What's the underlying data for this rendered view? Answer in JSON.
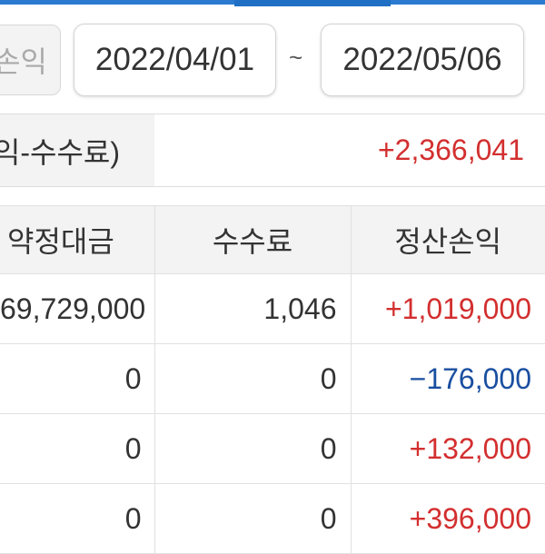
{
  "colors": {
    "accent": "#2a7bd0",
    "positive": "#d32f2f",
    "negative": "#1a4fa0"
  },
  "filter": {
    "label": "손익"
  },
  "date_range": {
    "start": "2022/04/01",
    "separator": "~",
    "end": "2022/05/06"
  },
  "summary": {
    "label": "익-수수료)",
    "value": "+2,366,041"
  },
  "table": {
    "headers": [
      "약정대금",
      "수수료",
      "정산손익"
    ],
    "rows": [
      {
        "amount": "69,729,000",
        "fee": "1,046",
        "pnl": "+1,019,000",
        "sign": "pos"
      },
      {
        "amount": "0",
        "fee": "0",
        "pnl": "−176,000",
        "sign": "neg"
      },
      {
        "amount": "0",
        "fee": "0",
        "pnl": "+132,000",
        "sign": "pos"
      },
      {
        "amount": "0",
        "fee": "0",
        "pnl": "+396,000",
        "sign": "pos"
      }
    ]
  }
}
